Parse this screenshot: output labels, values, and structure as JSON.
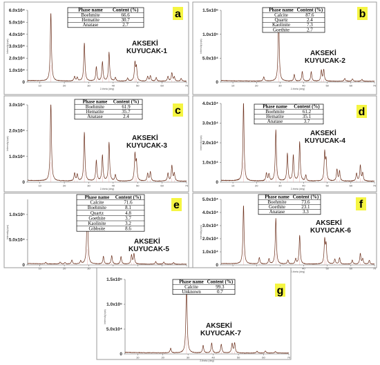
{
  "chart_data": [
    {
      "id": "a",
      "type": "line",
      "letter": "a",
      "xlabel": "2-theta (deg)",
      "ylabel": "Intensity(cps)",
      "xlim": [
        5,
        70
      ],
      "ylim": [
        0,
        60000
      ],
      "x_ticks": [
        "10",
        "20",
        "30",
        "40",
        "50",
        "60",
        "70"
      ],
      "y_ticks": [
        "0",
        "1.0x10⁴",
        "2.0x10⁴",
        "3.0x10⁴",
        "4.0x10⁴",
        "5.0x10⁴",
        "6.0x10⁴"
      ],
      "site_label": [
        "AKSEKİ",
        "KUYUCAK-1"
      ],
      "table": {
        "headers": [
          "Phase name",
          "Content (%)"
        ],
        "rows": [
          [
            "Boehmite",
            "66.6"
          ],
          [
            "Hematite",
            "30.7"
          ],
          [
            "Anatase",
            "2.7"
          ]
        ]
      },
      "peaks": [
        {
          "x": 14.5,
          "y": 57000
        },
        {
          "x": 24.2,
          "y": 4000
        },
        {
          "x": 25.3,
          "y": 3000
        },
        {
          "x": 28.2,
          "y": 32000
        },
        {
          "x": 33.1,
          "y": 12000
        },
        {
          "x": 35.6,
          "y": 16000
        },
        {
          "x": 38.3,
          "y": 24000
        },
        {
          "x": 40.9,
          "y": 3000
        },
        {
          "x": 45.9,
          "y": 2500
        },
        {
          "x": 48.9,
          "y": 15000
        },
        {
          "x": 49.5,
          "y": 11000
        },
        {
          "x": 54.1,
          "y": 4000
        },
        {
          "x": 55.2,
          "y": 4500
        },
        {
          "x": 57.6,
          "y": 3000
        },
        {
          "x": 62.4,
          "y": 4000
        },
        {
          "x": 64.0,
          "y": 7000
        },
        {
          "x": 65.0,
          "y": 3500
        },
        {
          "x": 67.8,
          "y": 2500
        }
      ]
    },
    {
      "id": "b",
      "type": "line",
      "letter": "b",
      "xlabel": "2-theta (deg)",
      "ylabel": "Intensity(cps)",
      "xlim": [
        5,
        70
      ],
      "ylim": [
        0,
        150000
      ],
      "x_ticks": [
        "10",
        "20",
        "30",
        "40",
        "50",
        "60",
        "70"
      ],
      "y_ticks": [
        "0",
        "5.0x10⁴",
        "1.0x10⁵",
        "1.5x10⁵"
      ],
      "site_label": [
        "AKSEKİ",
        "KUYUCAK-2"
      ],
      "table": {
        "headers": [
          "Phase name",
          "Content (%)"
        ],
        "rows": [
          [
            "Calcite",
            "87.6"
          ],
          [
            "Quartz",
            "2.4"
          ],
          [
            "Kaolinite",
            "7.3"
          ],
          [
            "Goethite",
            "2.7"
          ]
        ]
      },
      "peaks": [
        {
          "x": 23.1,
          "y": 9000
        },
        {
          "x": 29.4,
          "y": 140000
        },
        {
          "x": 36.0,
          "y": 14000
        },
        {
          "x": 39.4,
          "y": 20000
        },
        {
          "x": 43.2,
          "y": 20000
        },
        {
          "x": 47.5,
          "y": 22000
        },
        {
          "x": 48.5,
          "y": 24000
        },
        {
          "x": 57.4,
          "y": 6000
        },
        {
          "x": 60.7,
          "y": 5000
        },
        {
          "x": 64.7,
          "y": 4000
        }
      ]
    },
    {
      "id": "c",
      "type": "line",
      "letter": "c",
      "xlabel": "2-theta (deg)",
      "ylabel": "Intensity(cps)",
      "xlim": [
        5,
        70
      ],
      "ylim": [
        0,
        30000
      ],
      "x_ticks": [
        "10",
        "20",
        "30",
        "40",
        "50",
        "60",
        "70"
      ],
      "y_ticks": [
        "0",
        "1.0x10⁴",
        "2.0x10⁴",
        "3.0x10⁴"
      ],
      "site_label": [
        "AKSEKİ",
        "KUYUCAK-3"
      ],
      "table": {
        "headers": [
          "Phase name",
          "Content (%)"
        ],
        "rows": [
          [
            "Boehmite",
            "61.9"
          ],
          [
            "Hematite",
            "35.7"
          ],
          [
            "Anatase",
            "2.4"
          ]
        ]
      },
      "peaks": [
        {
          "x": 14.5,
          "y": 31000
        },
        {
          "x": 24.2,
          "y": 3000
        },
        {
          "x": 25.3,
          "y": 2500
        },
        {
          "x": 28.2,
          "y": 19000
        },
        {
          "x": 33.1,
          "y": 8000
        },
        {
          "x": 35.6,
          "y": 10000
        },
        {
          "x": 38.3,
          "y": 15000
        },
        {
          "x": 40.9,
          "y": 2500
        },
        {
          "x": 48.9,
          "y": 10000
        },
        {
          "x": 49.5,
          "y": 7000
        },
        {
          "x": 54.1,
          "y": 3000
        },
        {
          "x": 55.2,
          "y": 3500
        },
        {
          "x": 62.4,
          "y": 3000
        },
        {
          "x": 64.0,
          "y": 6000
        },
        {
          "x": 65.0,
          "y": 3000
        }
      ]
    },
    {
      "id": "d",
      "type": "line",
      "letter": "d",
      "xlabel": "2-theta (deg)",
      "ylabel": "Intensity(cps)",
      "xlim": [
        5,
        70
      ],
      "ylim": [
        0,
        40000
      ],
      "x_ticks": [
        "10",
        "20",
        "30",
        "40",
        "50",
        "60",
        "70"
      ],
      "y_ticks": [
        "0",
        "1.0x10⁴",
        "2.0x10⁴",
        "3.0x10⁴",
        "4.0x10⁴"
      ],
      "site_label": [
        "AKSEKİ",
        "KUYUCAK-4"
      ],
      "table": {
        "headers": [
          "Phase name",
          "Content (%)"
        ],
        "rows": [
          [
            "Boehmite",
            "61.2"
          ],
          [
            "Hematite",
            "35.1"
          ],
          [
            "Anatase",
            "3.7"
          ]
        ]
      },
      "peaks": [
        {
          "x": 14.5,
          "y": 40000
        },
        {
          "x": 24.2,
          "y": 4000
        },
        {
          "x": 25.3,
          "y": 3500
        },
        {
          "x": 28.2,
          "y": 26000
        },
        {
          "x": 33.1,
          "y": 14000
        },
        {
          "x": 35.6,
          "y": 13000
        },
        {
          "x": 38.3,
          "y": 20000
        },
        {
          "x": 40.9,
          "y": 3000
        },
        {
          "x": 48.9,
          "y": 14000
        },
        {
          "x": 49.5,
          "y": 10000
        },
        {
          "x": 54.1,
          "y": 6000
        },
        {
          "x": 55.2,
          "y": 5000
        },
        {
          "x": 62.4,
          "y": 4000
        },
        {
          "x": 64.0,
          "y": 8000
        },
        {
          "x": 65.0,
          "y": 4000
        }
      ]
    },
    {
      "id": "e",
      "type": "line",
      "letter": "e",
      "xlabel": "2-theta (deg)",
      "ylabel": "Intensity(cps)",
      "xlim": [
        5,
        70
      ],
      "ylim": [
        0,
        130000
      ],
      "x_ticks": [
        "10",
        "20",
        "30",
        "40",
        "50",
        "60",
        "70"
      ],
      "y_ticks": [
        "0",
        "5.0x10⁴",
        "1.0x10⁵"
      ],
      "site_label": [
        "AKSEKİ",
        "KUYUCAK-5"
      ],
      "table": {
        "headers": [
          "Phase name",
          "Content (%)"
        ],
        "rows": [
          [
            "Calcite",
            "71.6"
          ],
          [
            "Boehmite",
            "8.1"
          ],
          [
            "Quartz",
            "4.8"
          ],
          [
            "Goethite",
            "3.7"
          ],
          [
            "Kaolinite",
            "3.2"
          ],
          [
            "Gibbsite",
            "8.6"
          ]
        ]
      },
      "peaks": [
        {
          "x": 12.4,
          "y": 3000
        },
        {
          "x": 18.3,
          "y": 4000
        },
        {
          "x": 20.3,
          "y": 3000
        },
        {
          "x": 23.1,
          "y": 8000
        },
        {
          "x": 26.7,
          "y": 6000
        },
        {
          "x": 29.4,
          "y": 125000
        },
        {
          "x": 36.0,
          "y": 15000
        },
        {
          "x": 39.4,
          "y": 17000
        },
        {
          "x": 43.2,
          "y": 15000
        },
        {
          "x": 47.5,
          "y": 18000
        },
        {
          "x": 48.5,
          "y": 20000
        },
        {
          "x": 57.4,
          "y": 5000
        },
        {
          "x": 60.7,
          "y": 4000
        },
        {
          "x": 64.7,
          "y": 3000
        }
      ]
    },
    {
      "id": "f",
      "type": "line",
      "letter": "f",
      "xlabel": "2-theta (deg)",
      "ylabel": "Intensity(cps)",
      "xlim": [
        5,
        70
      ],
      "ylim": [
        0,
        50000
      ],
      "x_ticks": [
        "10",
        "20",
        "30",
        "40",
        "50",
        "60",
        "70"
      ],
      "y_ticks": [
        "0",
        "1.0x10⁴",
        "2.0x10⁴",
        "3.0x10⁴",
        "4.0x10⁴",
        "5.0x10⁴"
      ],
      "site_label": [
        "AKSEKİ",
        "KUYUCAK-6"
      ],
      "table": {
        "headers": [
          "Phase name",
          "Content (%)"
        ],
        "rows": [
          [
            "Boehmite",
            "73.6"
          ],
          [
            "Goethite",
            "23.1"
          ],
          [
            "Anatase",
            "3.3"
          ]
        ]
      },
      "peaks": [
        {
          "x": 14.5,
          "y": 45000
        },
        {
          "x": 21.2,
          "y": 5000
        },
        {
          "x": 25.3,
          "y": 4000
        },
        {
          "x": 28.2,
          "y": 35000
        },
        {
          "x": 33.3,
          "y": 3000
        },
        {
          "x": 36.6,
          "y": 4000
        },
        {
          "x": 38.3,
          "y": 22000
        },
        {
          "x": 48.9,
          "y": 18000
        },
        {
          "x": 49.5,
          "y": 14000
        },
        {
          "x": 53.2,
          "y": 4000
        },
        {
          "x": 55.2,
          "y": 5000
        },
        {
          "x": 60.6,
          "y": 3000
        },
        {
          "x": 64.0,
          "y": 8000
        },
        {
          "x": 65.0,
          "y": 4000
        },
        {
          "x": 67.8,
          "y": 3000
        }
      ]
    },
    {
      "id": "g",
      "type": "line",
      "letter": "g",
      "xlabel": "2-theta (deg)",
      "ylabel": "Intensity(cps)",
      "xlim": [
        5,
        70
      ],
      "ylim": [
        0,
        150000
      ],
      "x_ticks": [
        "10",
        "20",
        "30",
        "40",
        "50",
        "60",
        "70"
      ],
      "y_ticks": [
        "0",
        "5.0x10⁴",
        "1.0x10⁵",
        "1.5x10⁵"
      ],
      "site_label": [
        "AKSEKİ",
        "KUYUCAK-7"
      ],
      "table": {
        "headers": [
          "Phase name",
          "Content (%)"
        ],
        "rows": [
          [
            "Calcite",
            "99.3"
          ],
          [
            "Unknown",
            "0.7"
          ]
        ]
      },
      "peaks": [
        {
          "x": 23.1,
          "y": 9000
        },
        {
          "x": 29.4,
          "y": 145000
        },
        {
          "x": 36.0,
          "y": 15000
        },
        {
          "x": 39.4,
          "y": 20000
        },
        {
          "x": 43.2,
          "y": 18000
        },
        {
          "x": 47.5,
          "y": 19000
        },
        {
          "x": 48.5,
          "y": 20000
        },
        {
          "x": 57.4,
          "y": 4000
        },
        {
          "x": 60.7,
          "y": 4000
        },
        {
          "x": 64.7,
          "y": 3000
        }
      ]
    }
  ]
}
